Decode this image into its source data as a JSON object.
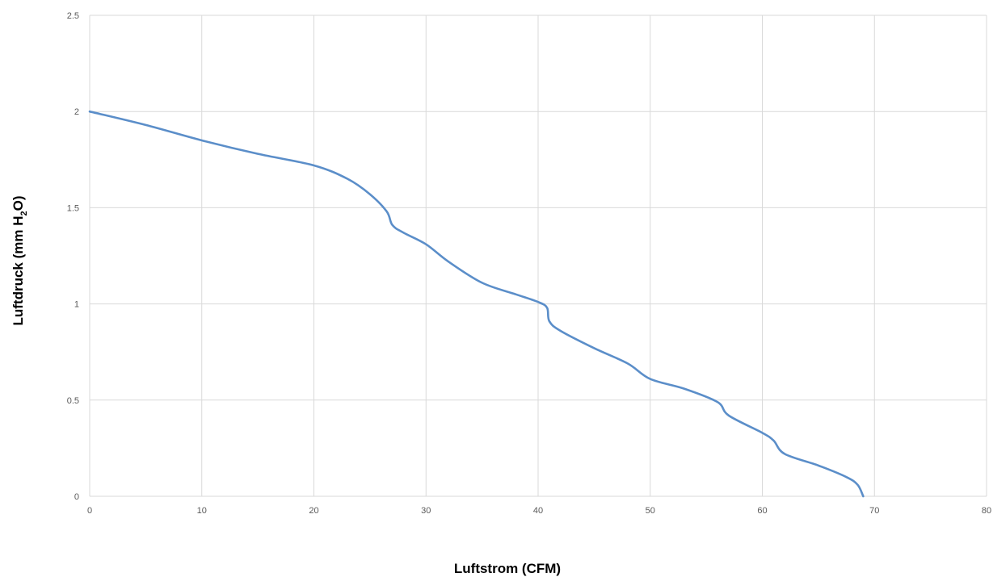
{
  "chart_data": {
    "type": "line",
    "title": "",
    "xlabel": "Luftstrom (CFM)",
    "ylabel": {
      "prefix": "Luftdruck (mm H",
      "subscript": "2",
      "suffix": "O)"
    },
    "xlim": [
      0,
      80
    ],
    "ylim": [
      0,
      2.5
    ],
    "xticks": [
      "0",
      "10",
      "20",
      "30",
      "40",
      "50",
      "60",
      "70",
      "80"
    ],
    "yticks": [
      "0",
      "0.5",
      "1",
      "1.5",
      "2",
      "2.5"
    ],
    "grid": true,
    "legend": "none",
    "line_color": "#5b8ec9",
    "series": [
      {
        "x": [
          0,
          5,
          10,
          15,
          20,
          23,
          25,
          26.5,
          27,
          28,
          30,
          32,
          35,
          38,
          40,
          40.8,
          41,
          42,
          45,
          48,
          50,
          53,
          56,
          57,
          60,
          61,
          62,
          65,
          67.5,
          68.5,
          69
        ],
        "y": [
          2.0,
          1.93,
          1.85,
          1.78,
          1.72,
          1.65,
          1.57,
          1.48,
          1.41,
          1.37,
          1.31,
          1.22,
          1.11,
          1.05,
          1.01,
          0.98,
          0.91,
          0.86,
          0.77,
          0.69,
          0.61,
          0.56,
          0.49,
          0.42,
          0.33,
          0.29,
          0.22,
          0.16,
          0.1,
          0.06,
          0.0
        ]
      }
    ]
  }
}
